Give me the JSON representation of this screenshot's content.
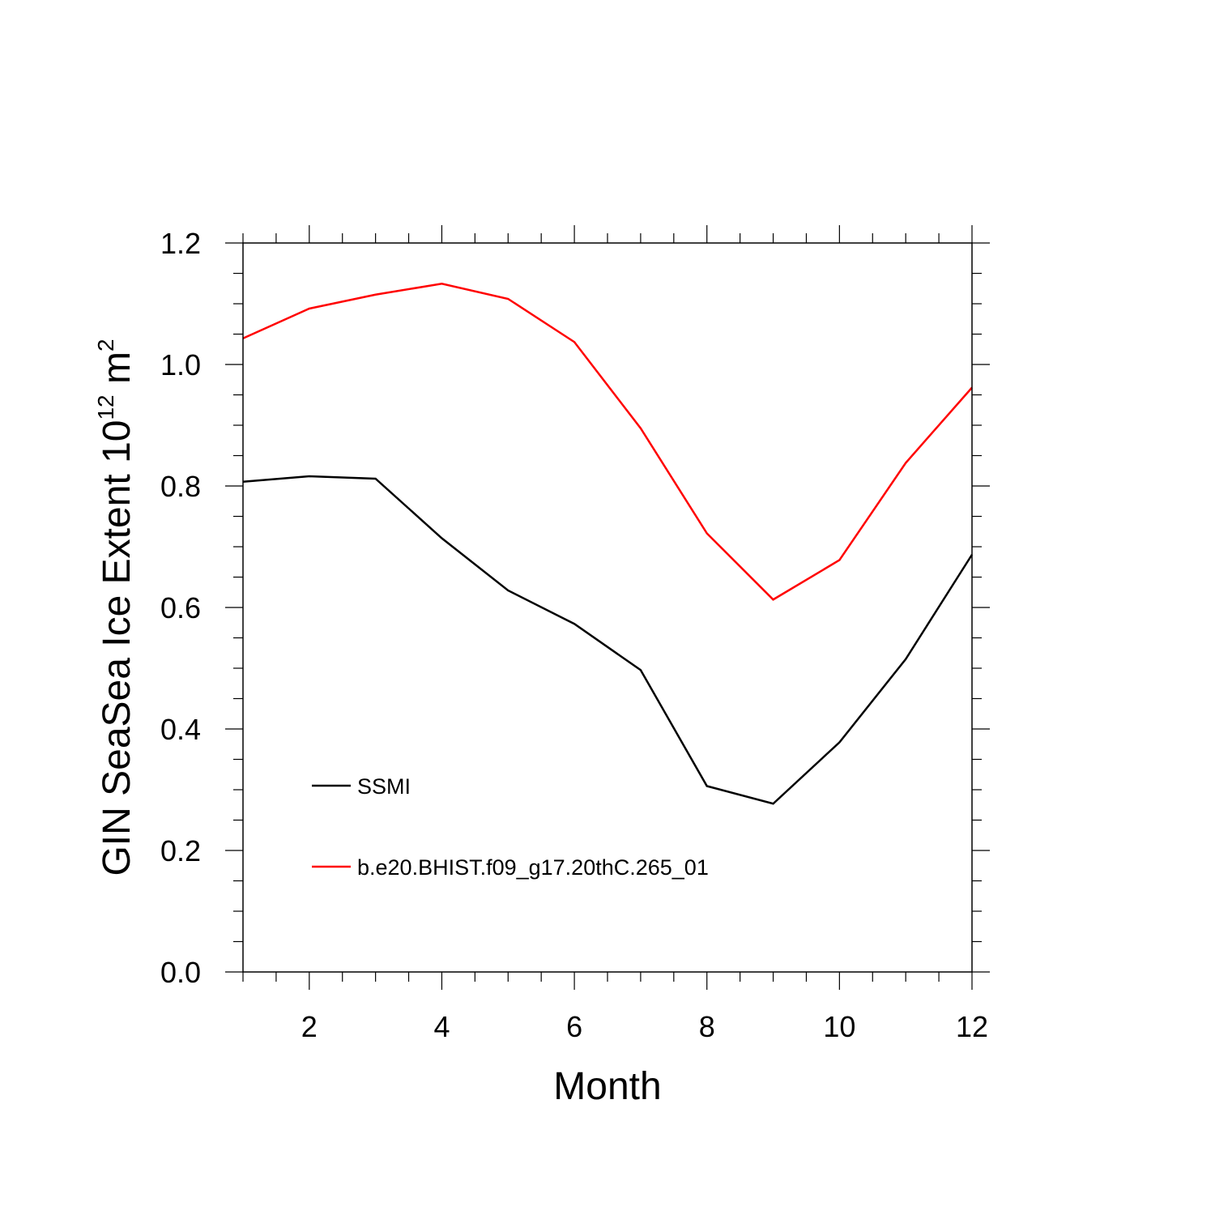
{
  "chart_data": {
    "type": "line",
    "xlabel": "Month",
    "ylabel": {
      "prefix": "GIN SeaSea Ice Extent 10",
      "superscript": "12",
      "middle": " m",
      "superscript2": "2"
    },
    "xlim": [
      1,
      12
    ],
    "ylim": [
      0.0,
      1.2
    ],
    "xticks": [
      2,
      4,
      6,
      8,
      10,
      12
    ],
    "xtick_labels": [
      "2",
      "4",
      "6",
      "8",
      "10",
      "12"
    ],
    "yticks": [
      0.0,
      0.2,
      0.4,
      0.6,
      0.8,
      1.0,
      1.2
    ],
    "ytick_labels": [
      "0.0",
      "0.2",
      "0.4",
      "0.6",
      "0.8",
      "1.0",
      "1.2"
    ],
    "x": [
      1,
      2,
      3,
      4,
      5,
      6,
      7,
      8,
      9,
      10,
      11,
      12
    ],
    "series": [
      {
        "name": "SSMI",
        "color": "#000000",
        "values": [
          0.807,
          0.816,
          0.812,
          0.714,
          0.628,
          0.573,
          0.497,
          0.306,
          0.277,
          0.378,
          0.515,
          0.687
        ]
      },
      {
        "name": "b.e20.BHIST.f09_g17.20thC.265_01",
        "color": "#ff0000",
        "values": [
          1.043,
          1.092,
          1.115,
          1.133,
          1.108,
          1.037,
          0.895,
          0.722,
          0.613,
          0.678,
          0.838,
          0.962
        ]
      }
    ],
    "legend_position": "lower-left, inside plot",
    "grid": false
  }
}
